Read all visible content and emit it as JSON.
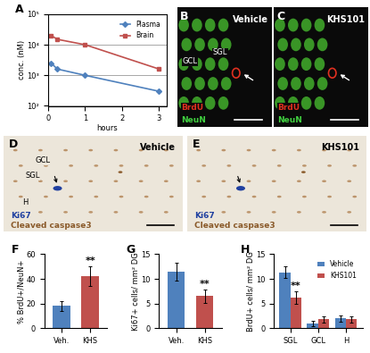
{
  "chart_data": [
    {
      "panel": "A",
      "type": "line",
      "x_label": "hours",
      "y_label": "conc. (nM)",
      "log": "y",
      "grid": true,
      "legend": "upper right",
      "x": [
        0.083,
        0.25,
        1,
        3
      ],
      "xlim": [
        0,
        3.2
      ],
      "xticks": [
        0,
        1,
        2,
        3
      ],
      "ylim": [
        100,
        100000
      ],
      "yticks": [
        {
          "value": 100,
          "label": "10²"
        },
        {
          "value": 1000,
          "label": "10³"
        },
        {
          "value": 10000,
          "label": "10⁴"
        },
        {
          "value": 100000,
          "label": "10⁵"
        }
      ],
      "series": [
        {
          "name": "Plasma",
          "color": "#4f81bd",
          "marker": "diamond",
          "values": [
            2500,
            1600,
            1000,
            300
          ]
        },
        {
          "name": "Brain",
          "color": "#c0504d",
          "marker": "square",
          "values": [
            20000,
            15000,
            10000,
            1600
          ]
        }
      ]
    },
    {
      "panel": "F",
      "type": "bar",
      "y_label": "% BrdU+/NeuN+",
      "categories": [
        "Veh.",
        "KHS"
      ],
      "values": [
        18,
        42
      ],
      "errors": [
        4,
        8
      ],
      "colors": [
        "#4f81bd",
        "#c0504d"
      ],
      "ylim": [
        0,
        60
      ],
      "yticks": [
        0,
        20,
        40,
        60
      ],
      "annotations": [
        {
          "text": "**",
          "category": "KHS"
        }
      ]
    },
    {
      "panel": "G",
      "type": "bar",
      "y_label": "Ki67+ cells/ mm² DG",
      "categories": [
        "Veh.",
        "KHS"
      ],
      "values": [
        11.5,
        6.5
      ],
      "errors": [
        1.8,
        1.3
      ],
      "colors": [
        "#4f81bd",
        "#c0504d"
      ],
      "ylim": [
        0,
        15
      ],
      "yticks": [
        0,
        5,
        10,
        15
      ],
      "annotations": [
        {
          "text": "**",
          "category": "KHS"
        }
      ]
    },
    {
      "panel": "H",
      "type": "bar",
      "y_label": "BrdU+ cells/ mm² DG",
      "categories": [
        "SGL",
        "GCL",
        "H"
      ],
      "legend": "upper right",
      "ylim": [
        0,
        15
      ],
      "yticks": [
        0,
        5,
        10,
        15
      ],
      "series": [
        {
          "name": "Vehicle",
          "color": "#4f81bd",
          "values": [
            11.3,
            1.0,
            2.0
          ],
          "errors": [
            1.2,
            0.5,
            0.6
          ]
        },
        {
          "name": "KHS101",
          "color": "#c0504d",
          "values": [
            6.2,
            1.8,
            1.8
          ],
          "errors": [
            1.2,
            0.6,
            0.7
          ]
        }
      ],
      "annotations": [
        {
          "text": "**",
          "category": "SGL",
          "series": "KHS101"
        }
      ]
    }
  ],
  "images": [
    {
      "panel": "B",
      "title": "Vehicle",
      "layers": [
        "GCL",
        "SGL"
      ],
      "stains": [
        {
          "name": "BrdU",
          "color": "#e03020"
        },
        {
          "name": "NeuN",
          "color": "#40d040"
        }
      ]
    },
    {
      "panel": "C",
      "title": "KHS101",
      "layers": [],
      "stains": [
        {
          "name": "BrdU",
          "color": "#e03020"
        },
        {
          "name": "NeuN",
          "color": "#40d040"
        }
      ]
    },
    {
      "panel": "D",
      "title": "Vehicle",
      "layers": [
        "GCL",
        "SGL",
        "H"
      ],
      "stains": [
        {
          "name": "Ki67",
          "color": "#2040a0"
        },
        {
          "name": "Cleaved caspase3",
          "color": "#8a5a2a"
        }
      ]
    },
    {
      "panel": "E",
      "title": "KHS101",
      "layers": [],
      "stains": [
        {
          "name": "Ki67",
          "color": "#2040a0"
        },
        {
          "name": "Cleaved caspase3",
          "color": "#8a5a2a"
        }
      ]
    }
  ]
}
